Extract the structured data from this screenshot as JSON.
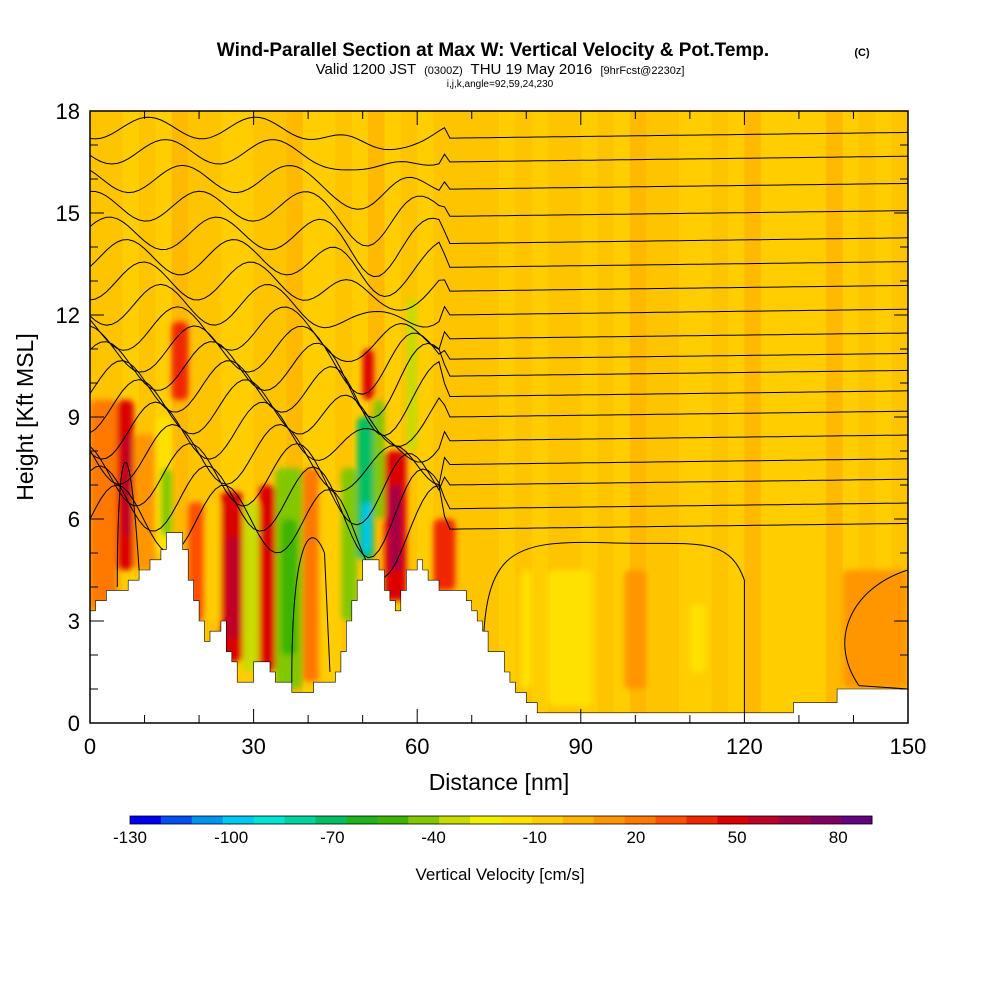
{
  "title": {
    "main": "Wind-Parallel Section at Max W: Vertical Velocity & Pot.Temp.",
    "copyright": "(C)",
    "sub_valid": "Valid 1200 JST",
    "sub_utc": "(0300Z)",
    "sub_date": "THU 19 May 2016",
    "sub_fcst": "[9hrFcst@2230z]",
    "params": "i,j,k,angle=92,59,24,230"
  },
  "chart_data": {
    "type": "heatmap",
    "xlabel": "Distance [nm]",
    "ylabel": "Height [Kft MSL]",
    "xlim": [
      0,
      150
    ],
    "ylim": [
      0,
      18
    ],
    "x_ticks": [
      "0",
      "30",
      "60",
      "90",
      "120",
      "150"
    ],
    "y_ticks": [
      "0",
      "3",
      "6",
      "9",
      "12",
      "15",
      "18"
    ],
    "colorbar": {
      "label": "Vertical Velocity [cm/s]",
      "tick_labels": [
        "-130",
        "-100",
        "-70",
        "-40",
        "-10",
        "20",
        "50",
        "80"
      ],
      "colors": [
        "#0000f0",
        "#0050f0",
        "#0096f0",
        "#00c8f0",
        "#00e6d2",
        "#00d2a0",
        "#00be64",
        "#1eb41e",
        "#3cb400",
        "#82c800",
        "#c8dc00",
        "#f0f000",
        "#ffe100",
        "#ffcd00",
        "#ffb400",
        "#ff9600",
        "#ff7800",
        "#ff5000",
        "#f02800",
        "#dc0000",
        "#be0028",
        "#a00046",
        "#820064",
        "#640082"
      ],
      "min": -130,
      "max": 90
    },
    "terrain": [
      [
        0,
        3.3
      ],
      [
        1,
        3.6
      ],
      [
        3,
        3.9
      ],
      [
        5,
        3.9
      ],
      [
        7,
        4.2
      ],
      [
        9,
        4.5
      ],
      [
        11,
        4.8
      ],
      [
        13,
        5.1
      ],
      [
        14,
        5.6
      ],
      [
        16,
        5.6
      ],
      [
        17,
        5.1
      ],
      [
        18,
        4.2
      ],
      [
        19,
        3.6
      ],
      [
        20,
        3.0
      ],
      [
        21,
        2.4
      ],
      [
        22,
        2.7
      ],
      [
        24,
        3.0
      ],
      [
        25,
        2.1
      ],
      [
        26,
        1.8
      ],
      [
        27,
        1.2
      ],
      [
        29,
        1.2
      ],
      [
        30,
        1.8
      ],
      [
        32,
        1.8
      ],
      [
        33,
        1.5
      ],
      [
        34,
        1.2
      ],
      [
        36,
        1.2
      ],
      [
        37,
        0.9
      ],
      [
        40,
        0.9
      ],
      [
        41,
        1.2
      ],
      [
        44,
        1.2
      ],
      [
        45,
        1.5
      ],
      [
        46,
        2.1
      ],
      [
        47,
        3.0
      ],
      [
        48,
        3.6
      ],
      [
        49,
        4.2
      ],
      [
        50,
        4.8
      ],
      [
        52,
        4.8
      ],
      [
        53,
        4.5
      ],
      [
        54,
        3.9
      ],
      [
        55,
        3.6
      ],
      [
        56,
        3.3
      ],
      [
        57,
        3.9
      ],
      [
        58,
        4.5
      ],
      [
        60,
        4.8
      ],
      [
        61,
        4.5
      ],
      [
        62,
        4.2
      ],
      [
        64,
        3.9
      ],
      [
        67,
        3.9
      ],
      [
        69,
        3.6
      ],
      [
        70,
        3.3
      ],
      [
        71,
        3.0
      ],
      [
        72,
        2.7
      ],
      [
        73,
        2.1
      ],
      [
        75,
        2.1
      ],
      [
        76,
        1.5
      ],
      [
        77,
        1.2
      ],
      [
        78,
        0.9
      ],
      [
        80,
        0.6
      ],
      [
        82,
        0.3
      ],
      [
        128,
        0.3
      ],
      [
        129,
        0.6
      ],
      [
        136,
        0.6
      ],
      [
        137,
        1.0
      ],
      [
        150,
        1.0
      ]
    ],
    "velocity_cells": [
      {
        "x0": 0,
        "x1": 5,
        "y0": 3.3,
        "y1": 9.5,
        "w": 20
      },
      {
        "x0": 5,
        "x1": 8,
        "y0": 4.5,
        "y1": 9.5,
        "w": 50
      },
      {
        "x0": 6,
        "x1": 7.5,
        "y0": 5.5,
        "y1": 8.5,
        "w": 60
      },
      {
        "x0": 8,
        "x1": 12,
        "y0": 4.5,
        "y1": 8.5,
        "w": 10
      },
      {
        "x0": 12,
        "x1": 15,
        "y0": 5.0,
        "y1": 9.0,
        "w": -20
      },
      {
        "x0": 13,
        "x1": 15,
        "y0": 5.5,
        "y1": 7.5,
        "w": -40
      },
      {
        "x0": 15,
        "x1": 18,
        "y0": 9.5,
        "y1": 11.8,
        "w": 40
      },
      {
        "x0": 18,
        "x1": 21,
        "y0": 3.0,
        "y1": 6.5,
        "w": 30
      },
      {
        "x0": 21,
        "x1": 24,
        "y0": 3.0,
        "y1": 6.5,
        "w": -10
      },
      {
        "x0": 24,
        "x1": 28,
        "y0": 1.8,
        "y1": 6.8,
        "w": 45
      },
      {
        "x0": 25,
        "x1": 27.5,
        "y0": 2.5,
        "y1": 5.5,
        "w": 60
      },
      {
        "x0": 28,
        "x1": 31,
        "y0": 1.5,
        "y1": 6.5,
        "w": -30
      },
      {
        "x0": 31,
        "x1": 34,
        "y0": 1.5,
        "y1": 7.0,
        "w": 45
      },
      {
        "x0": 34,
        "x1": 39,
        "y0": 1.0,
        "y1": 7.5,
        "w": -40
      },
      {
        "x0": 35,
        "x1": 38,
        "y0": 2.0,
        "y1": 6.0,
        "w": -55
      },
      {
        "x0": 39,
        "x1": 42,
        "y0": 1.2,
        "y1": 7.5,
        "w": 20
      },
      {
        "x0": 42,
        "x1": 46,
        "y0": 1.5,
        "y1": 7.0,
        "w": -10
      },
      {
        "x0": 46,
        "x1": 49,
        "y0": 3.0,
        "y1": 7.5,
        "w": -40
      },
      {
        "x0": 49,
        "x1": 52,
        "y0": 4.8,
        "y1": 9.0,
        "w": -70
      },
      {
        "x0": 50,
        "x1": 51.5,
        "y0": 5.0,
        "y1": 6.5,
        "w": -100
      },
      {
        "x0": 52,
        "x1": 54,
        "y0": 6.0,
        "y1": 9.5,
        "w": -40
      },
      {
        "x0": 50,
        "x1": 52,
        "y0": 9.5,
        "y1": 11.0,
        "w": 45
      },
      {
        "x0": 54,
        "x1": 58,
        "y0": 3.6,
        "y1": 8.0,
        "w": 45
      },
      {
        "x0": 55,
        "x1": 57,
        "y0": 4.5,
        "y1": 7.0,
        "w": 70
      },
      {
        "x0": 58,
        "x1": 60,
        "y0": 8.0,
        "y1": 12.5,
        "w": -30
      },
      {
        "x0": 63,
        "x1": 67,
        "y0": 3.9,
        "y1": 6.0,
        "w": 40
      },
      {
        "x0": 79,
        "x1": 81,
        "y0": 1.0,
        "y1": 4.5,
        "w": -15
      },
      {
        "x0": 84,
        "x1": 92,
        "y0": 0.5,
        "y1": 4.5,
        "w": -12
      },
      {
        "x0": 98,
        "x1": 102,
        "y0": 1.0,
        "y1": 4.5,
        "w": 15
      },
      {
        "x0": 110,
        "x1": 113,
        "y0": 1.5,
        "y1": 3.5,
        "w": -20
      },
      {
        "x0": 138,
        "x1": 150,
        "y0": 1.0,
        "y1": 4.5,
        "w": 15
      }
    ]
  }
}
